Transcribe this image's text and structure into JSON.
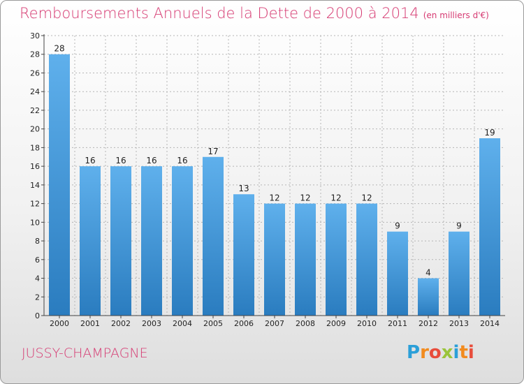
{
  "title": "Remboursements Annuels de la Dette de 2000 à 2014",
  "unit_note": "(en milliers d'€)",
  "commune": "JUSSY-CHAMPAGNE",
  "logo": {
    "letters": [
      "P",
      "r",
      "o",
      "x",
      "i",
      "t",
      "i"
    ],
    "colors": [
      "#2b9fd8",
      "#f28b1e",
      "#e84d3c",
      "#9ac43a",
      "#2b9fd8",
      "#f28b1e",
      "#e84d3c"
    ]
  },
  "colors": {
    "bar_top": "#5fb0ec",
    "bar_bottom": "#2a7cbf",
    "title": "#d63a72",
    "grid": "#b5b5b5"
  },
  "chart_data": {
    "type": "bar",
    "title": "Remboursements Annuels de la Dette de 2000 à 2014",
    "categories": [
      "2000",
      "2001",
      "2002",
      "2003",
      "2004",
      "2005",
      "2006",
      "2007",
      "2008",
      "2009",
      "2010",
      "2011",
      "2012",
      "2013",
      "2014"
    ],
    "values": [
      28,
      16,
      16,
      16,
      16,
      17,
      13,
      12,
      12,
      12,
      12,
      9,
      4,
      9,
      19
    ],
    "ylim": [
      0,
      30
    ],
    "yticks": [
      0,
      2,
      4,
      6,
      8,
      10,
      12,
      14,
      16,
      18,
      20,
      22,
      24,
      26,
      28,
      30
    ],
    "grid": true
  }
}
